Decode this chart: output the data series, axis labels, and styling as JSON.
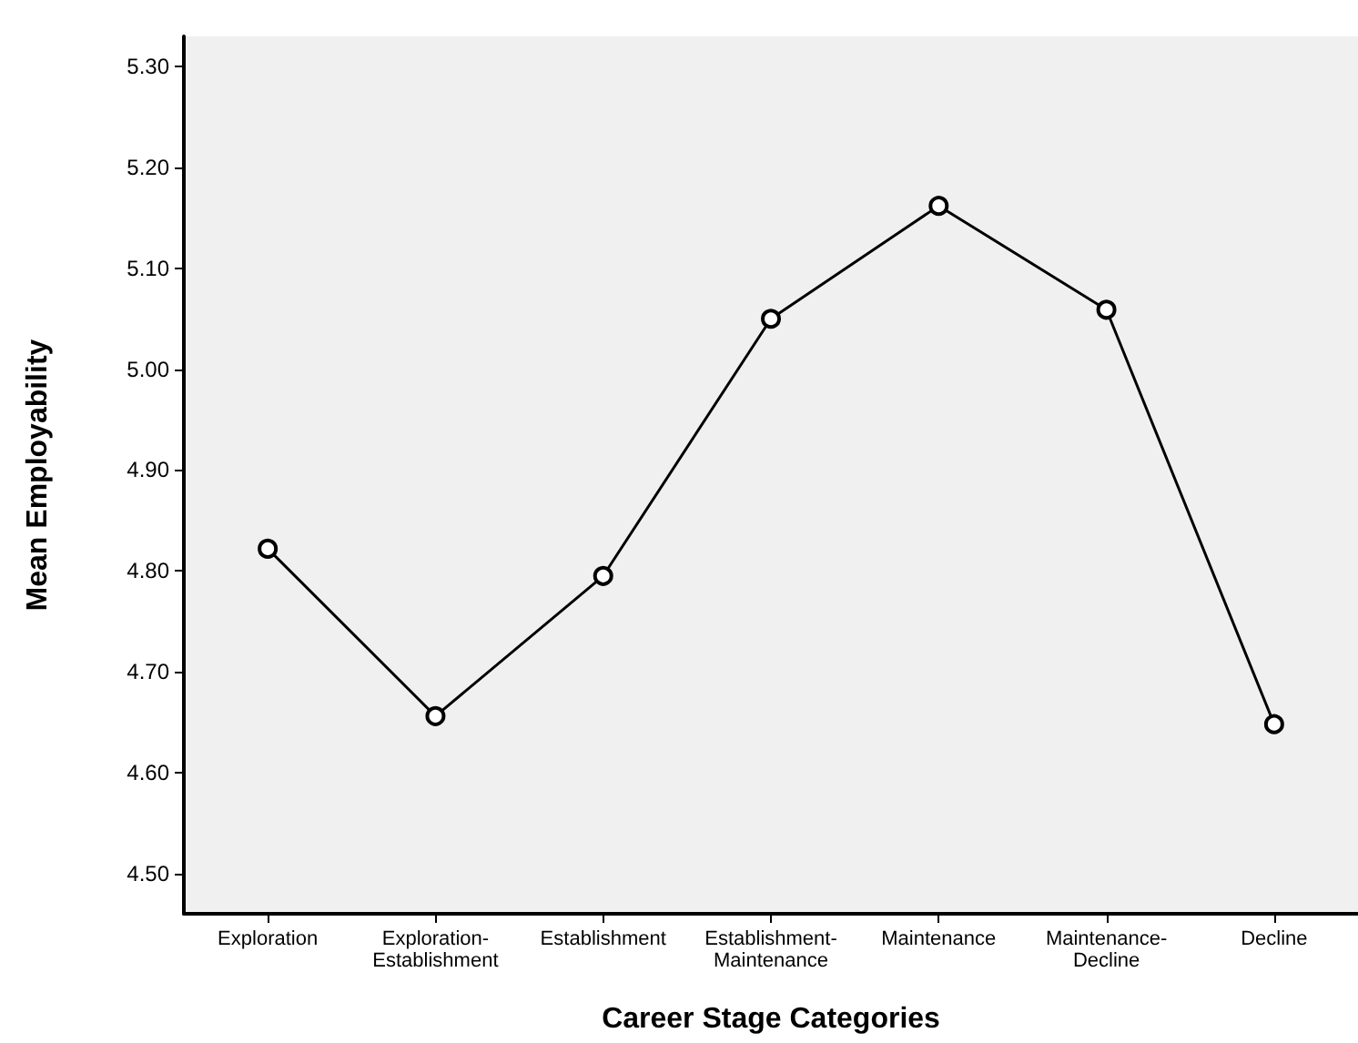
{
  "chart_data": {
    "type": "line",
    "xlabel": "Career Stage Categories",
    "ylabel": "Mean Employability",
    "categories": [
      "Exploration",
      "Exploration-Establishment",
      "Establishment",
      "Establishment-Maintenance",
      "Maintenance",
      "Maintenance-Decline",
      "Decline"
    ],
    "series": [
      {
        "color": "#000000",
        "values": [
          4.822,
          4.656,
          4.795,
          5.05,
          5.162,
          5.059,
          4.648
        ]
      }
    ],
    "ylim": [
      4.46,
      5.33
    ],
    "yticks": [
      {
        "value": 4.5,
        "label": "4.50"
      },
      {
        "value": 4.6,
        "label": "4.60"
      },
      {
        "value": 4.7,
        "label": "4.70"
      },
      {
        "value": 4.8,
        "label": "4.80"
      },
      {
        "value": 4.9,
        "label": "4.90"
      },
      {
        "value": 5.0,
        "label": "5.00"
      },
      {
        "value": 5.1,
        "label": "5.10"
      },
      {
        "value": 5.2,
        "label": "5.20"
      },
      {
        "value": 5.3,
        "label": "5.30"
      }
    ],
    "grid": false,
    "marker": "circle",
    "line_style": "solid"
  }
}
